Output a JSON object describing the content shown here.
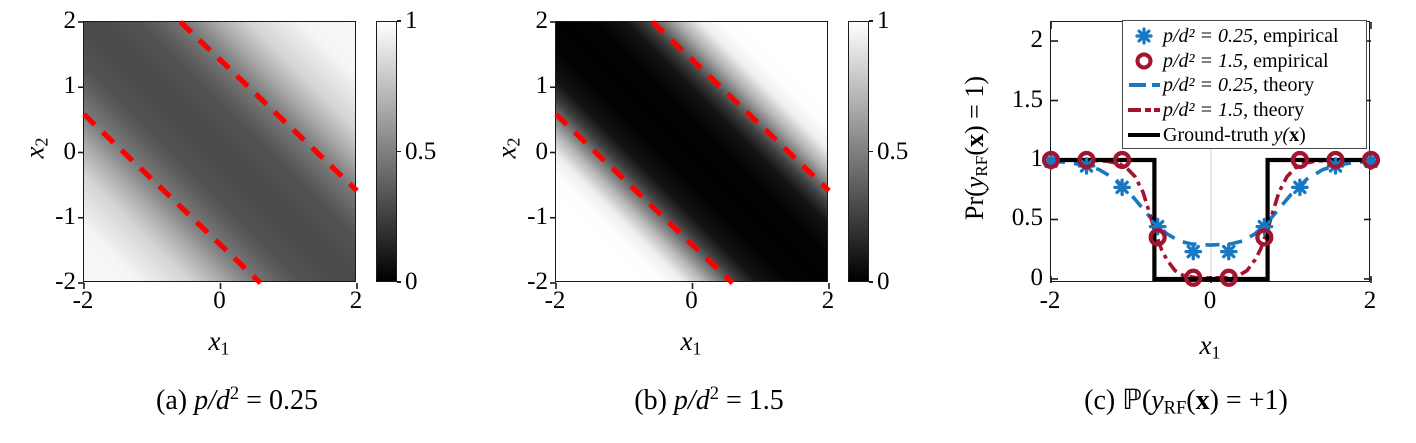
{
  "colors": {
    "blue": "#1878c2",
    "dark_red": "#a2142f",
    "boundary_red": "#ff0000",
    "axis": "#1a1a1a",
    "grid": "#dcdcdc",
    "black": "#000000"
  },
  "chart_data": [
    {
      "type": "heatmap",
      "caption": {
        "prefix": "(a) ",
        "math": "p/d",
        "sup": "2",
        "rest": " = 0.25"
      },
      "xlabel": {
        "var": "x",
        "sub": "1"
      },
      "ylabel": {
        "var": "x",
        "sub": "2"
      },
      "xlim": [
        -2,
        2
      ],
      "ylim": [
        -2,
        2
      ],
      "x_ticks": [
        {
          "v": -2,
          "label": "-2"
        },
        {
          "v": 0,
          "label": "0"
        },
        {
          "v": 2,
          "label": "2"
        }
      ],
      "y_ticks": [
        {
          "v": 2,
          "label": "2"
        },
        {
          "v": 1,
          "label": "1"
        },
        {
          "v": 0,
          "label": "0"
        },
        {
          "v": -1,
          "label": "-1"
        },
        {
          "v": -2,
          "label": "-2"
        }
      ],
      "colorbar": {
        "lim": [
          0,
          1
        ],
        "colormap": "gray",
        "ticks": [
          {
            "v": 1,
            "label": "1"
          },
          {
            "v": 0.5,
            "label": "0.5"
          },
          {
            "v": 0,
            "label": "0"
          }
        ]
      },
      "field_note": "Pr value varies only along s=(x1+x2)/sqrt(2); light in corners (-2,-2) and (2,2), dark band along anti-diagonal",
      "diagonal_profile": {
        "positions_pct": [
          0,
          10,
          20,
          27,
          32.3,
          40,
          50,
          60,
          67.7,
          73,
          80,
          90,
          100
        ],
        "values": [
          0.97,
          0.96,
          0.83,
          0.64,
          0.47,
          0.33,
          0.285,
          0.33,
          0.47,
          0.64,
          0.83,
          0.96,
          0.97
        ]
      },
      "decision_lines": {
        "style": "dashed",
        "equation": "x1 + x2 = ±sqrt(2)",
        "lines": [
          [
            [
              -2,
              0.5858
            ],
            [
              0.5858,
              -2
            ]
          ],
          [
            [
              -0.5858,
              2
            ],
            [
              2,
              -0.5858
            ]
          ]
        ]
      }
    },
    {
      "type": "heatmap",
      "caption": {
        "prefix": "(b) ",
        "math": "p/d",
        "sup": "2",
        "rest": " = 1.5"
      },
      "xlabel": {
        "var": "x",
        "sub": "1"
      },
      "ylabel": {
        "var": "x",
        "sub": "2"
      },
      "xlim": [
        -2,
        2
      ],
      "ylim": [
        -2,
        2
      ],
      "x_ticks": [
        {
          "v": -2,
          "label": "-2"
        },
        {
          "v": 0,
          "label": "0"
        },
        {
          "v": 2,
          "label": "2"
        }
      ],
      "y_ticks": [
        {
          "v": 2,
          "label": "2"
        },
        {
          "v": 1,
          "label": "1"
        },
        {
          "v": 0,
          "label": "0"
        },
        {
          "v": -1,
          "label": "-1"
        },
        {
          "v": -2,
          "label": "-2"
        }
      ],
      "colorbar": {
        "lim": [
          0,
          1
        ],
        "colormap": "gray",
        "ticks": [
          {
            "v": 1,
            "label": "1"
          },
          {
            "v": 0.5,
            "label": "0.5"
          },
          {
            "v": 0,
            "label": "0"
          }
        ]
      },
      "field_note": "Sharp transition: white outside band, black inside band along anti-diagonal",
      "diagonal_profile": {
        "positions_pct": [
          0,
          14,
          20,
          24,
          28,
          31,
          34,
          38,
          44,
          50,
          56,
          62,
          66,
          69,
          72,
          76,
          80,
          86,
          100
        ],
        "values": [
          1,
          1,
          0.998,
          0.93,
          0.7,
          0.48,
          0.26,
          0.07,
          0.01,
          0.005,
          0.01,
          0.07,
          0.26,
          0.48,
          0.7,
          0.93,
          0.998,
          1,
          1
        ]
      },
      "decision_lines": {
        "style": "dashed",
        "equation": "x1 + x2 = ±sqrt(2)",
        "lines": [
          [
            [
              -2,
              0.5858
            ],
            [
              0.5858,
              -2
            ]
          ],
          [
            [
              -0.5858,
              2
            ],
            [
              2,
              -0.5858
            ]
          ]
        ]
      }
    },
    {
      "type": "line",
      "caption": {
        "prefix": "(c) ",
        "P": "ℙ",
        "open": "(",
        "yvar": "y",
        "ysub": "RF",
        "mid": "(",
        "xvar": "x",
        "post": ") = +1)"
      },
      "xlabel": {
        "var": "x",
        "sub": "1"
      },
      "ylabel_parts": {
        "pre": "Pr(",
        "yvar": "y",
        "ysub": "RF",
        "mid": "(",
        "xvar": "x",
        "post": ") = 1)"
      },
      "xlim": [
        -2,
        2
      ],
      "ylim": [
        -0.034,
        2.16
      ],
      "x_ticks": [
        {
          "v": -2,
          "label": "-2"
        },
        {
          "v": 0,
          "label": "0"
        },
        {
          "v": 2,
          "label": "2"
        }
      ],
      "y_ticks": [
        {
          "v": 0,
          "label": "0"
        },
        {
          "v": 0.5,
          "label": "0.5"
        },
        {
          "v": 1,
          "label": "1"
        },
        {
          "v": 1.5,
          "label": "1.5"
        },
        {
          "v": 2,
          "label": "2"
        }
      ],
      "grid_x_values": [
        0
      ],
      "series": [
        {
          "name": "p/d2=0.25 theory",
          "kind": "line",
          "dash": "dashed",
          "color_key": "blue",
          "x": [
            -2,
            -1.8,
            -1.6,
            -1.4,
            -1.2,
            -1,
            -0.85,
            -0.7,
            -0.55,
            -0.4,
            -0.25,
            0,
            0.25,
            0.4,
            0.55,
            0.7,
            0.85,
            1,
            1.2,
            1.4,
            1.6,
            1.8,
            2
          ],
          "y": [
            0.99,
            0.98,
            0.96,
            0.92,
            0.84,
            0.71,
            0.59,
            0.47,
            0.38,
            0.32,
            0.295,
            0.285,
            0.295,
            0.32,
            0.38,
            0.47,
            0.59,
            0.71,
            0.84,
            0.92,
            0.96,
            0.98,
            0.99
          ]
        },
        {
          "name": "p/d2=1.5 theory",
          "kind": "line",
          "dash": "dashdot",
          "color_key": "dark_red",
          "x": [
            -2,
            -1.5,
            -1.3,
            -1.15,
            -1.05,
            -0.95,
            -0.85,
            -0.78,
            -0.7,
            -0.62,
            -0.55,
            -0.45,
            -0.35,
            -0.2,
            0,
            0.2,
            0.35,
            0.45,
            0.55,
            0.62,
            0.7,
            0.78,
            0.85,
            0.95,
            1.05,
            1.15,
            1.3,
            1.5,
            2
          ],
          "y": [
            1,
            1,
            0.99,
            0.97,
            0.93,
            0.86,
            0.73,
            0.58,
            0.4,
            0.25,
            0.16,
            0.07,
            0.03,
            0.012,
            0.008,
            0.012,
            0.03,
            0.07,
            0.16,
            0.25,
            0.4,
            0.58,
            0.73,
            0.86,
            0.93,
            0.97,
            0.99,
            1,
            1
          ]
        },
        {
          "name": "Ground-truth y(x)",
          "kind": "line",
          "dash": "solid",
          "color_key": "black",
          "x": [
            -2,
            -0.707,
            -0.707,
            0.707,
            0.707,
            2
          ],
          "y": [
            1,
            1,
            0,
            0,
            1,
            1
          ]
        },
        {
          "name": "p/d2=0.25 empirical",
          "kind": "scatter",
          "marker": "star",
          "color_key": "blue",
          "x": [
            -2,
            -1.556,
            -1.111,
            -0.667,
            -0.222,
            0.222,
            0.667,
            1.111,
            1.556,
            2
          ],
          "y": [
            0.99,
            0.95,
            0.77,
            0.44,
            0.23,
            0.23,
            0.44,
            0.77,
            0.95,
            0.99
          ]
        },
        {
          "name": "p/d2=1.5 empirical",
          "kind": "scatter",
          "marker": "circle",
          "color_key": "dark_red",
          "x": [
            -2,
            -1.556,
            -1.111,
            -0.667,
            -0.222,
            0.222,
            0.667,
            1.111,
            1.556,
            2
          ],
          "y": [
            1,
            1,
            1,
            0.35,
            0.01,
            0.01,
            0.35,
            1,
            1,
            1
          ]
        }
      ],
      "legend": {
        "position": "top-right-inside",
        "entries": [
          {
            "sample": "star",
            "color_key": "blue",
            "var": "p/d² = 0.25",
            "rest": ", empirical"
          },
          {
            "sample": "circle",
            "color_key": "dark_red",
            "var": "p/d² = 1.5",
            "rest": ", empirical"
          },
          {
            "sample": "dashed",
            "color_key": "blue",
            "var": "p/d² = 0.25",
            "rest": ", theory"
          },
          {
            "sample": "dashdot",
            "color_key": "dark_red",
            "var": "p/d² = 1.5",
            "rest": ", theory"
          },
          {
            "sample": "solid",
            "color_key": "black",
            "var": "",
            "rest": "Ground-truth ",
            "tail_y": "y(",
            "tail_x": "x",
            "tail_post": ")"
          }
        ]
      }
    }
  ]
}
